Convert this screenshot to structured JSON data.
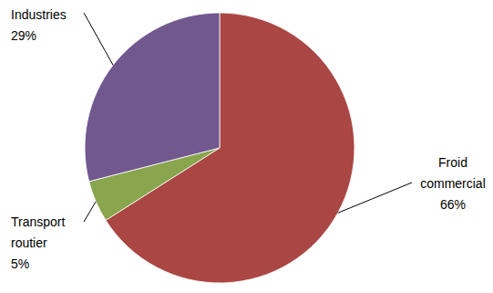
{
  "chart_data": {
    "type": "pie",
    "categories": [
      "Froid commercial",
      "Transport routier",
      "Industries"
    ],
    "values": [
      66,
      5,
      29
    ],
    "value_labels": [
      "66%",
      "5%",
      "29%"
    ],
    "colors": [
      "#AA4643",
      "#89A54E",
      "#71588F"
    ],
    "data_labels": true
  }
}
